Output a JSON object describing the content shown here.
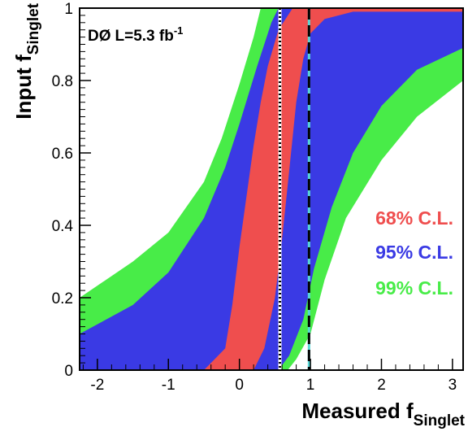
{
  "chart_data": {
    "type": "area",
    "title": "",
    "annotation": {
      "experiment": "DØ",
      "lumi_prefix": "L=5.3 fb",
      "lumi_exp": "-1"
    },
    "xlabel": {
      "main": "Measured f",
      "sub": "Singlet"
    },
    "ylabel": {
      "main": "Input f",
      "sub": "Singlet"
    },
    "xlim": [
      -2.25,
      3.15
    ],
    "ylim": [
      0,
      1
    ],
    "x_ticks": [
      -2,
      -1,
      0,
      1,
      2,
      3
    ],
    "x_tick_labels": [
      "-2",
      "-1",
      "0",
      "1",
      "2",
      "3"
    ],
    "y_ticks": [
      0,
      0.2,
      0.4,
      0.6,
      0.8,
      1
    ],
    "y_tick_labels": [
      "0",
      "0.2",
      "0.4",
      "0.6",
      "0.8",
      "1"
    ],
    "grid": false,
    "legend_position": "right-center",
    "colors": {
      "cl68": "#ef4e4e",
      "cl95": "#3a3ae4",
      "cl99": "#48ec48",
      "vline_measured": "#000000",
      "vline_center": "#56d7d7"
    },
    "series": [
      {
        "name": "99% C.L.",
        "key": "cl99",
        "upper": [
          [
            -2.25,
            0.2
          ],
          [
            -1.5,
            0.3
          ],
          [
            -1.0,
            0.38
          ],
          [
            -0.5,
            0.52
          ],
          [
            -0.25,
            0.64
          ],
          [
            0.0,
            0.79
          ],
          [
            0.2,
            0.92
          ],
          [
            0.3,
            1.0
          ]
        ],
        "lower": [
          [
            0.68,
            0.0
          ],
          [
            0.8,
            0.03
          ],
          [
            1.0,
            0.1
          ],
          [
            1.2,
            0.25
          ],
          [
            1.5,
            0.42
          ],
          [
            2.0,
            0.58
          ],
          [
            2.5,
            0.7
          ],
          [
            3.15,
            0.8
          ]
        ]
      },
      {
        "name": "95% C.L.",
        "key": "cl95",
        "upper": [
          [
            -2.25,
            0.1
          ],
          [
            -1.5,
            0.18
          ],
          [
            -1.0,
            0.27
          ],
          [
            -0.5,
            0.42
          ],
          [
            -0.2,
            0.56
          ],
          [
            0.0,
            0.68
          ],
          [
            0.25,
            0.84
          ],
          [
            0.45,
            0.96
          ],
          [
            0.55,
            1.0
          ]
        ],
        "lower": [
          [
            0.55,
            0.0
          ],
          [
            0.7,
            0.04
          ],
          [
            0.9,
            0.14
          ],
          [
            1.05,
            0.28
          ],
          [
            1.3,
            0.45
          ],
          [
            1.6,
            0.6
          ],
          [
            2.0,
            0.73
          ],
          [
            2.5,
            0.83
          ],
          [
            3.15,
            0.89
          ]
        ]
      },
      {
        "name": "68% C.L.",
        "key": "cl68",
        "upper": [
          [
            -0.5,
            0.0
          ],
          [
            -0.2,
            0.06
          ],
          [
            -0.1,
            0.18
          ],
          [
            0.0,
            0.34
          ],
          [
            0.1,
            0.48
          ],
          [
            0.2,
            0.62
          ],
          [
            0.3,
            0.74
          ],
          [
            0.4,
            0.84
          ],
          [
            0.55,
            0.94
          ],
          [
            0.75,
            1.0
          ]
        ],
        "lower": [
          [
            0.2,
            0.0
          ],
          [
            0.35,
            0.06
          ],
          [
            0.5,
            0.2
          ],
          [
            0.6,
            0.36
          ],
          [
            0.7,
            0.55
          ],
          [
            0.8,
            0.74
          ],
          [
            0.9,
            0.86
          ],
          [
            1.0,
            0.93
          ],
          [
            1.2,
            0.97
          ],
          [
            1.6,
            0.99
          ],
          [
            3.15,
            0.99
          ]
        ]
      }
    ],
    "vertical_lines": [
      {
        "x": 0.57,
        "style": "dotted",
        "key": "vline_measured"
      },
      {
        "x": 0.98,
        "style": "dashed",
        "key": "vline_center"
      }
    ]
  }
}
